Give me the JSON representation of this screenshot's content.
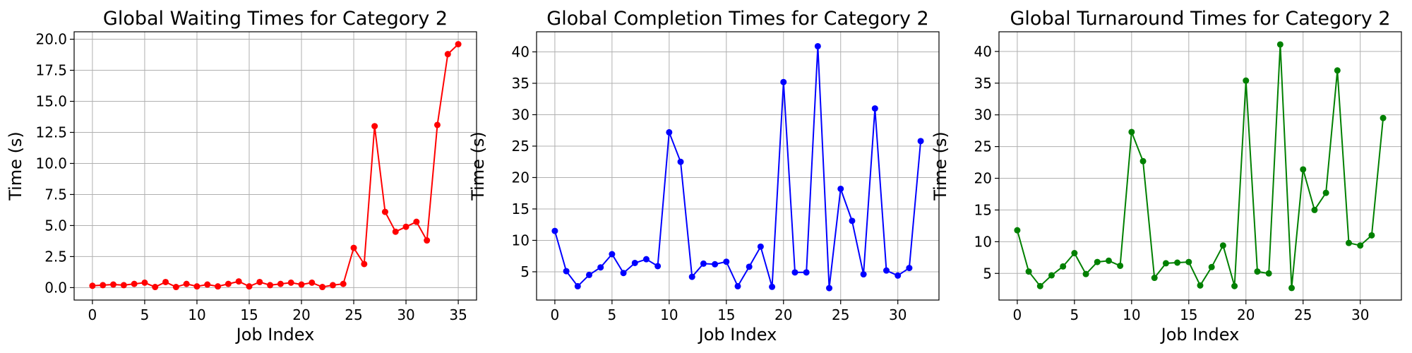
{
  "figure": {
    "background": "#ffffff",
    "grid_color": "#b0b0b0"
  },
  "chart_data": [
    {
      "type": "line",
      "title": "Global Waiting Times for Category 2",
      "xlabel": "Job Index",
      "ylabel": "Time (s)",
      "xlim": [
        -1.75,
        36.75
      ],
      "ylim": [
        -1.0,
        20.6
      ],
      "xticks": [
        0,
        5,
        10,
        15,
        20,
        25,
        30,
        35
      ],
      "yticks": [
        0.0,
        2.5,
        5.0,
        7.5,
        10.0,
        12.5,
        15.0,
        17.5,
        20.0
      ],
      "ytick_labels": [
        "0.0",
        "2.5",
        "5.0",
        "7.5",
        "10.0",
        "12.5",
        "15.0",
        "17.5",
        "20.0"
      ],
      "grid": true,
      "series": [
        {
          "color": "#ff0000",
          "marker": "circle",
          "x": [
            0,
            1,
            2,
            3,
            4,
            5,
            6,
            7,
            8,
            9,
            10,
            11,
            12,
            13,
            14,
            15,
            16,
            17,
            18,
            19,
            20,
            21,
            22,
            23,
            24,
            25,
            26,
            27,
            28,
            29,
            30,
            31,
            32,
            33,
            34,
            35
          ],
          "y": [
            0.15,
            0.2,
            0.25,
            0.2,
            0.3,
            0.4,
            0.05,
            0.45,
            0.05,
            0.3,
            0.1,
            0.25,
            0.1,
            0.3,
            0.5,
            0.1,
            0.45,
            0.2,
            0.3,
            0.4,
            0.25,
            0.4,
            0.05,
            0.2,
            0.3,
            3.2,
            1.9,
            13.0,
            6.1,
            4.5,
            4.9,
            5.3,
            3.8,
            13.1,
            18.8,
            19.6
          ]
        }
      ]
    },
    {
      "type": "line",
      "title": "Global Completion Times for Category 2",
      "xlabel": "Job Index",
      "ylabel": "Time (s)",
      "xlim": [
        -1.6,
        33.6
      ],
      "ylim": [
        0.5,
        43.2
      ],
      "xticks": [
        0,
        5,
        10,
        15,
        20,
        25,
        30
      ],
      "yticks": [
        5,
        10,
        15,
        20,
        25,
        30,
        35,
        40
      ],
      "ytick_labels": [
        "5",
        "10",
        "15",
        "20",
        "25",
        "30",
        "35",
        "40"
      ],
      "grid": true,
      "series": [
        {
          "color": "#0000ff",
          "marker": "circle",
          "x": [
            0,
            1,
            2,
            3,
            4,
            5,
            6,
            7,
            8,
            9,
            10,
            11,
            12,
            13,
            14,
            15,
            16,
            17,
            18,
            19,
            20,
            21,
            22,
            23,
            24,
            25,
            26,
            27,
            28,
            29,
            30,
            31,
            32
          ],
          "y": [
            11.5,
            5.1,
            2.7,
            4.5,
            5.7,
            7.8,
            4.8,
            6.4,
            7.0,
            5.9,
            27.2,
            22.5,
            4.2,
            6.3,
            6.2,
            6.6,
            2.7,
            5.8,
            9.0,
            2.6,
            35.2,
            4.9,
            4.9,
            40.9,
            2.4,
            18.2,
            13.1,
            4.6,
            31.0,
            5.2,
            4.4,
            5.6,
            25.8
          ]
        }
      ]
    },
    {
      "type": "line",
      "title": "Global Turnaround Times for Category 2",
      "xlabel": "Job Index",
      "ylabel": "Time (s)",
      "xlim": [
        -1.6,
        33.6
      ],
      "ylim": [
        0.8,
        43.1
      ],
      "xticks": [
        0,
        5,
        10,
        15,
        20,
        25,
        30
      ],
      "yticks": [
        5,
        10,
        15,
        20,
        25,
        30,
        35,
        40
      ],
      "ytick_labels": [
        "5",
        "10",
        "15",
        "20",
        "25",
        "30",
        "35",
        "40"
      ],
      "grid": true,
      "series": [
        {
          "color": "#008000",
          "marker": "circle",
          "x": [
            0,
            1,
            2,
            3,
            4,
            5,
            6,
            7,
            8,
            9,
            10,
            11,
            12,
            13,
            14,
            15,
            16,
            17,
            18,
            19,
            20,
            21,
            22,
            23,
            24,
            25,
            26,
            27,
            28,
            29,
            30,
            31,
            32
          ],
          "y": [
            11.8,
            5.3,
            3.0,
            4.7,
            6.1,
            8.2,
            4.9,
            6.8,
            7.0,
            6.2,
            27.3,
            22.7,
            4.3,
            6.6,
            6.7,
            6.8,
            3.1,
            6.0,
            9.4,
            3.0,
            35.4,
            5.3,
            5.0,
            41.1,
            2.7,
            21.4,
            15.0,
            17.7,
            37.0,
            9.8,
            9.4,
            11.0,
            29.5
          ]
        }
      ]
    }
  ]
}
